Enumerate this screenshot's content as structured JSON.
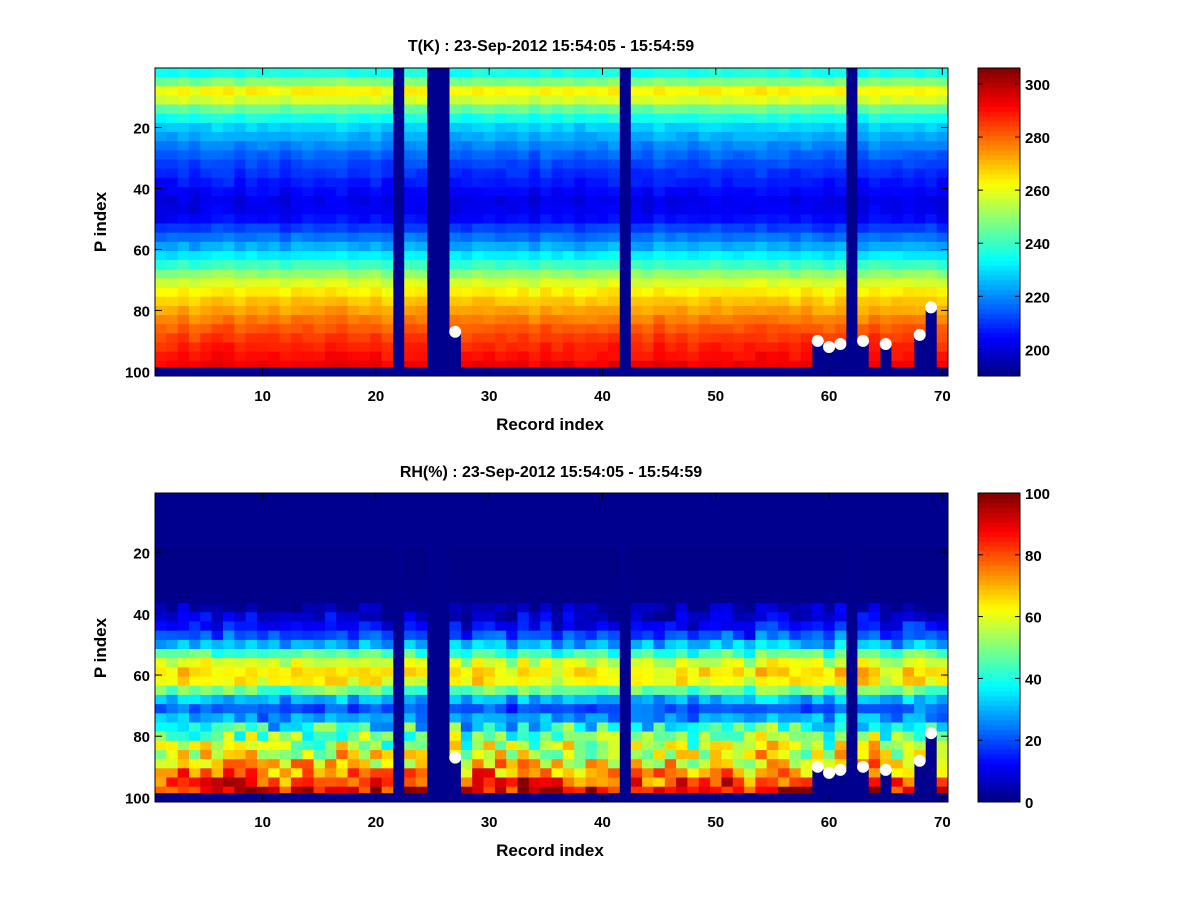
{
  "chart_data": [
    {
      "type": "heatmap",
      "title": "T(K) : 23-Sep-2012 15:54:05 - 15:54:59",
      "xlabel": "Record index",
      "ylabel": "P index",
      "xlim": [
        0.5,
        70.5
      ],
      "ylim": [
        0.5,
        101.5
      ],
      "xticks": [
        10,
        20,
        30,
        40,
        50,
        60,
        70
      ],
      "yticks": [
        20,
        40,
        60,
        80,
        100
      ],
      "clim": [
        190,
        306
      ],
      "colorbar_ticks": [
        200,
        220,
        240,
        260,
        280,
        300
      ],
      "colormap": "jet",
      "n_records": 70,
      "n_levels": 101,
      "valid_levels_max": 98,
      "missing_records": [
        22,
        25,
        26,
        42,
        62
      ],
      "mean_profile": {
        "p_index": [
          1,
          5,
          9,
          12,
          16,
          20,
          30,
          40,
          45,
          50,
          60,
          65,
          70,
          75,
          80,
          85,
          90,
          95,
          98
        ],
        "value": [
          232,
          248,
          268,
          252,
          238,
          228,
          214,
          205,
          201,
          205,
          226,
          240,
          256,
          266,
          273,
          280,
          286,
          290,
          293
        ]
      },
      "markers": [
        [
          27,
          87
        ],
        [
          59,
          90
        ],
        [
          60,
          92
        ],
        [
          61,
          91
        ],
        [
          63,
          90
        ],
        [
          65,
          91
        ],
        [
          68,
          88
        ],
        [
          69,
          79
        ]
      ]
    },
    {
      "type": "heatmap",
      "title": "RH(%) : 23-Sep-2012 15:54:05 - 15:54:59",
      "xlabel": "Record index",
      "ylabel": "P index",
      "xlim": [
        0.5,
        70.5
      ],
      "ylim": [
        0.5,
        101.5
      ],
      "xticks": [
        10,
        20,
        30,
        40,
        50,
        60,
        70
      ],
      "yticks": [
        20,
        40,
        60,
        80,
        100
      ],
      "clim": [
        0,
        100
      ],
      "colorbar_ticks": [
        0,
        20,
        40,
        60,
        80,
        100
      ],
      "colormap": "jet",
      "n_records": 70,
      "n_levels": 101,
      "valid_levels_max": 98,
      "missing_records": [
        22,
        25,
        26,
        42,
        62
      ],
      "mean_profile": {
        "p_index": [
          1,
          35,
          40,
          45,
          50,
          55,
          60,
          63,
          67,
          70,
          73,
          77,
          80,
          85,
          90,
          95,
          98
        ],
        "value": [
          0,
          1,
          6,
          14,
          30,
          55,
          68,
          60,
          35,
          20,
          24,
          40,
          50,
          58,
          68,
          82,
          90
        ]
      },
      "markers": [
        [
          27,
          87
        ],
        [
          59,
          90
        ],
        [
          60,
          92
        ],
        [
          61,
          91
        ],
        [
          63,
          90
        ],
        [
          65,
          91
        ],
        [
          68,
          88
        ],
        [
          69,
          79
        ]
      ]
    }
  ]
}
